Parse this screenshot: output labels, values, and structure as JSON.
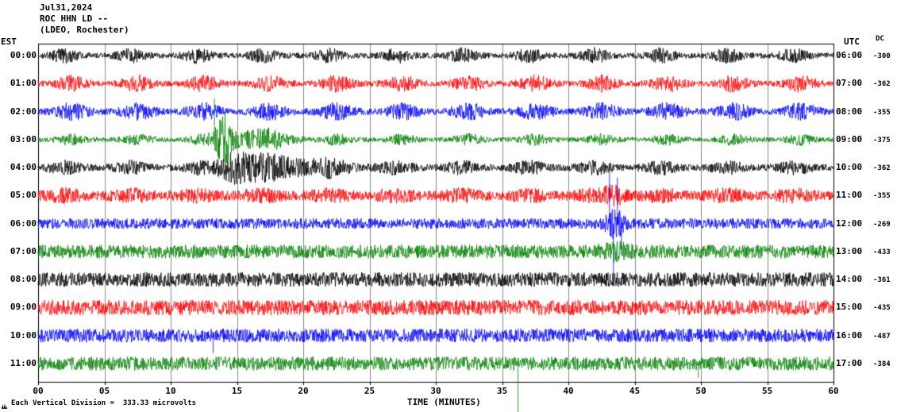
{
  "header": {
    "date": "Jul31,2024",
    "station": "ROC HHN LD --",
    "location": "(LDEO, Rochester)"
  },
  "axes": {
    "left_label": "EST",
    "right_label": "UTC",
    "dc_label": "DC",
    "x_title": "TIME (MINUTES)",
    "x_ticks": [
      "00",
      "05",
      "10",
      "15",
      "20",
      "25",
      "30",
      "35",
      "40",
      "45",
      "50",
      "55",
      "60"
    ]
  },
  "footer": {
    "note": "Each Vertical Division =  333.33 microvolts"
  },
  "chart_data": {
    "type": "line",
    "subtype": "seismogram-helicorder",
    "title": "ROC HHN LD -- (LDEO, Rochester) Jul31,2024",
    "xlabel": "TIME (MINUTES)",
    "x_range_minutes": [
      0,
      60
    ],
    "x_tick_interval": 5,
    "rows_count": 12,
    "trace_color_cycle": [
      "#000000",
      "#ff0000",
      "#0000ff",
      "#008000"
    ],
    "grid": true,
    "rows": [
      {
        "est": "00:00",
        "utc": "06:00",
        "dc": "-300",
        "color": "#000000",
        "base": 3.5,
        "periodic": {
          "start": 2.0,
          "interval": 5,
          "w": 1.0,
          "a": 7
        },
        "bursts": [],
        "spikes": []
      },
      {
        "est": "01:00",
        "utc": "07:00",
        "dc": "-362",
        "color": "#ff0000",
        "base": 3.5,
        "periodic": {
          "start": 2.5,
          "interval": 5,
          "w": 1.1,
          "a": 8
        },
        "bursts": [],
        "spikes": []
      },
      {
        "est": "02:00",
        "utc": "08:00",
        "dc": "-355",
        "color": "#0000ff",
        "base": 4.0,
        "periodic": {
          "start": 2.5,
          "interval": 5,
          "w": 1.2,
          "a": 8
        },
        "bursts": [],
        "spikes": []
      },
      {
        "est": "03:00",
        "utc": "09:00",
        "dc": "-375",
        "color": "#008000",
        "base": 3.0,
        "periodic": {
          "start": 2.5,
          "interval": 5,
          "w": 1.0,
          "a": 5
        },
        "bursts": [
          {
            "t": 14,
            "w": 0.6,
            "a": 28
          },
          {
            "t": 16.5,
            "w": 2.5,
            "a": 9
          }
        ],
        "spikes": [
          {
            "t": 13.3,
            "a": 52
          },
          {
            "t": 13.6,
            "a": -48
          }
        ]
      },
      {
        "est": "04:00",
        "utc": "10:00",
        "dc": "-362",
        "color": "#000000",
        "base": 4.0,
        "periodic": {
          "start": 2.0,
          "interval": 5,
          "w": 1.2,
          "a": 6
        },
        "bursts": [
          {
            "t": 14.8,
            "w": 1.2,
            "a": 16
          },
          {
            "t": 17.5,
            "w": 2.5,
            "a": 9
          },
          {
            "t": 21,
            "w": 3,
            "a": 5
          }
        ],
        "spikes": []
      },
      {
        "est": "05:00",
        "utc": "11:00",
        "dc": "-355",
        "color": "#ff0000",
        "base": 5.5,
        "periodic": {
          "start": 2.0,
          "interval": 5,
          "w": 1.5,
          "a": 5
        },
        "bursts": [
          {
            "t": 43.5,
            "w": 0.8,
            "a": 8
          }
        ],
        "spikes": []
      },
      {
        "est": "06:00",
        "utc": "12:00",
        "dc": "-269",
        "color": "#0000ff",
        "base": 6.5,
        "periodic": null,
        "bursts": [
          {
            "t": 43.5,
            "w": 0.7,
            "a": 14
          }
        ],
        "spikes": [
          {
            "t": 43.1,
            "a": 66
          },
          {
            "t": 43.4,
            "a": -78
          },
          {
            "t": 43.7,
            "a": 58
          },
          {
            "t": 44.0,
            "a": -40
          }
        ]
      },
      {
        "est": "07:00",
        "utc": "13:00",
        "dc": "-433",
        "color": "#008000",
        "base": 8.5,
        "periodic": null,
        "bursts": [
          {
            "t": 43.5,
            "w": 1.0,
            "a": 6
          }
        ],
        "spikes": []
      },
      {
        "est": "08:00",
        "utc": "14:00",
        "dc": "-361",
        "color": "#000000",
        "base": 9.0,
        "periodic": null,
        "bursts": [],
        "spikes": []
      },
      {
        "est": "09:00",
        "utc": "15:00",
        "dc": "-435",
        "color": "#ff0000",
        "base": 9.5,
        "periodic": null,
        "bursts": [],
        "spikes": []
      },
      {
        "est": "10:00",
        "utc": "16:00",
        "dc": "-487",
        "color": "#0000ff",
        "base": 8.5,
        "periodic": null,
        "bursts": [],
        "spikes": [
          {
            "t": 13.2,
            "a": -22
          }
        ]
      },
      {
        "est": "11:00",
        "utc": "17:00",
        "dc": "-384",
        "color": "#008000",
        "base": 8.5,
        "periodic": null,
        "bursts": [],
        "spikes": [
          {
            "t": 36.2,
            "a": -62
          },
          {
            "t": 49.8,
            "a": -18
          }
        ]
      }
    ]
  }
}
